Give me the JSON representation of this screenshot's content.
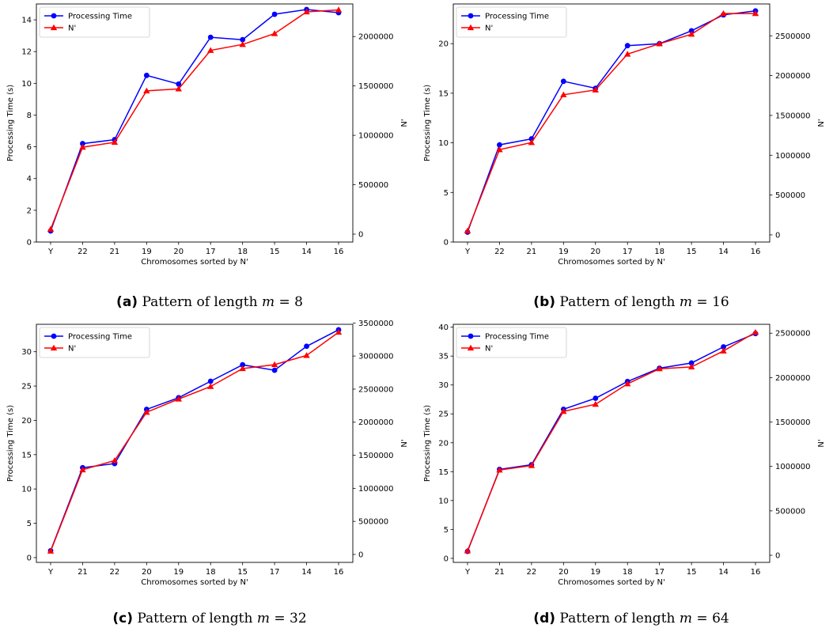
{
  "chart_data": [
    {
      "type": "line",
      "panel": "(a)",
      "caption_tag": "(a)",
      "caption_text": "Pattern of length ",
      "caption_m": "m",
      "caption_value": " = 8",
      "categories": [
        "Y",
        "22",
        "21",
        "19",
        "20",
        "17",
        "18",
        "15",
        "14",
        "16"
      ],
      "xlabel": "Chromosomes sorted by N'",
      "ylabel_left": "Processing Time (s)",
      "ylabel_right": "N'",
      "ylim_left": [
        0,
        15
      ],
      "yticks_left": [
        0,
        2,
        4,
        6,
        8,
        10,
        12,
        14
      ],
      "ylim_right": [
        -80000,
        2330000
      ],
      "yticks_right": [
        0,
        500000,
        1000000,
        1500000,
        2000000
      ],
      "series": [
        {
          "name": "Processing Time",
          "axis": "left",
          "color": "#0000ff",
          "marker": "circle",
          "values": [
            0.7,
            6.2,
            6.45,
            10.5,
            9.95,
            12.9,
            12.75,
            14.35,
            14.65,
            14.45
          ]
        },
        {
          "name": "N'",
          "axis": "right",
          "color": "#ff0000",
          "marker": "triangle",
          "values": [
            50000,
            880000,
            930000,
            1450000,
            1470000,
            1860000,
            1920000,
            2030000,
            2250000,
            2270000
          ]
        }
      ],
      "legend": "upper-left"
    },
    {
      "type": "line",
      "panel": "(b)",
      "caption_tag": "(b)",
      "caption_text": "Pattern of length ",
      "caption_m": "m",
      "caption_value": " = 16",
      "categories": [
        "Y",
        "22",
        "21",
        "19",
        "20",
        "17",
        "18",
        "15",
        "14",
        "16"
      ],
      "xlabel": "Chromosomes sorted by N'",
      "ylabel_left": "Processing Time (s)",
      "ylabel_right": "N'",
      "ylim_left": [
        0,
        24
      ],
      "yticks_left": [
        0,
        5,
        10,
        15,
        20
      ],
      "ylim_right": [
        -90000,
        2900000
      ],
      "yticks_right": [
        0,
        500000,
        1000000,
        1500000,
        2000000,
        2500000
      ],
      "series": [
        {
          "name": "Processing Time",
          "axis": "left",
          "color": "#0000ff",
          "marker": "circle",
          "values": [
            1.0,
            9.8,
            10.4,
            16.2,
            15.5,
            19.8,
            20.0,
            21.3,
            22.9,
            23.3
          ]
        },
        {
          "name": "N'",
          "axis": "right",
          "color": "#ff0000",
          "marker": "triangle",
          "values": [
            50000,
            1070000,
            1160000,
            1760000,
            1820000,
            2270000,
            2400000,
            2520000,
            2780000,
            2780000
          ]
        }
      ],
      "legend": "upper-left"
    },
    {
      "type": "line",
      "panel": "(c)",
      "caption_tag": "(c)",
      "caption_text": "Pattern of length ",
      "caption_m": "m",
      "caption_value": " = 32",
      "categories": [
        "Y",
        "21",
        "22",
        "20",
        "19",
        "18",
        "15",
        "17",
        "14",
        "16"
      ],
      "xlabel": "Chromosomes sorted by N'",
      "ylabel_left": "Processing Time (s)",
      "ylabel_right": "N'",
      "ylim_left": [
        -0.7,
        34
      ],
      "yticks_left": [
        0,
        5,
        10,
        15,
        20,
        25,
        30
      ],
      "ylim_right": [
        -120000,
        3480000
      ],
      "yticks_right": [
        0,
        500000,
        1000000,
        1500000,
        2000000,
        2500000,
        3000000,
        3500000
      ],
      "series": [
        {
          "name": "Processing Time",
          "axis": "left",
          "color": "#0000ff",
          "marker": "circle",
          "values": [
            1.0,
            13.1,
            13.7,
            21.6,
            23.3,
            25.7,
            28.1,
            27.3,
            30.8,
            33.2
          ]
        },
        {
          "name": "N'",
          "axis": "right",
          "color": "#ff0000",
          "marker": "triangle",
          "values": [
            50000,
            1280000,
            1420000,
            2150000,
            2350000,
            2540000,
            2810000,
            2870000,
            3010000,
            3360000
          ]
        }
      ],
      "legend": "upper-left"
    },
    {
      "type": "line",
      "panel": "(d)",
      "caption_tag": "(d)",
      "caption_text": "Pattern of length ",
      "caption_m": "m",
      "caption_value": " = 64",
      "categories": [
        "Y",
        "21",
        "22",
        "20",
        "19",
        "18",
        "17",
        "15",
        "14",
        "16"
      ],
      "xlabel": "Chromosomes sorted by N'",
      "ylabel_left": "Processing Time (s)",
      "ylabel_right": "N'",
      "ylim_left": [
        -0.7,
        40.5
      ],
      "yticks_left": [
        0,
        5,
        10,
        15,
        20,
        25,
        30,
        35,
        40
      ],
      "ylim_right": [
        -80000,
        2600000
      ],
      "yticks_right": [
        0,
        500000,
        1000000,
        1500000,
        2000000,
        2500000
      ],
      "series": [
        {
          "name": "Processing Time",
          "axis": "left",
          "color": "#0000ff",
          "marker": "circle",
          "values": [
            1.2,
            15.4,
            16.2,
            25.8,
            27.7,
            30.6,
            32.9,
            33.8,
            36.6,
            38.9
          ]
        },
        {
          "name": "N'",
          "axis": "right",
          "color": "#ff0000",
          "marker": "triangle",
          "values": [
            50000,
            960000,
            1010000,
            1620000,
            1700000,
            1930000,
            2100000,
            2120000,
            2300000,
            2510000
          ]
        }
      ],
      "legend": "upper-left"
    }
  ]
}
